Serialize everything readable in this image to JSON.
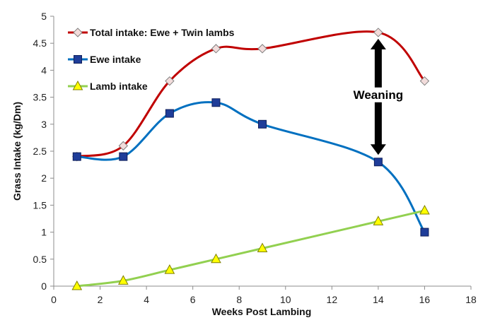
{
  "chart_data": {
    "type": "line",
    "title": "",
    "xlabel": "Weeks Post Lambing",
    "ylabel": "Grass Intake (kg/Dm)",
    "xlim": [
      0,
      18
    ],
    "ylim": [
      0,
      5
    ],
    "xticks": [
      0,
      2,
      4,
      6,
      8,
      10,
      12,
      14,
      16,
      18
    ],
    "yticks": [
      0,
      0.5,
      1,
      1.5,
      2,
      2.5,
      3,
      3.5,
      4,
      4.5,
      5
    ],
    "xtick_labels": [
      "0",
      "2",
      "4",
      "6",
      "8",
      "10",
      "12",
      "14",
      "16",
      "18"
    ],
    "ytick_labels": [
      "0",
      "0.5",
      "1",
      "1.5",
      "2",
      "2.5",
      "3",
      "3.5",
      "4",
      "4.5",
      "5"
    ],
    "grid": false,
    "legend_position": "top-left",
    "series": [
      {
        "name": "Total intake: Ewe + Twin lambs",
        "color": "#c00000",
        "marker": "diamond",
        "marker_fill": "#f2dcdb",
        "marker_stroke": "#7f7f7f",
        "smooth": true,
        "x": [
          1,
          3,
          5,
          7,
          9,
          14,
          16
        ],
        "y": [
          2.4,
          2.6,
          3.8,
          4.4,
          4.4,
          4.7,
          3.8
        ]
      },
      {
        "name": "Ewe intake",
        "color": "#0070c0",
        "marker": "square",
        "marker_fill": "#1f3d99",
        "marker_stroke": "#0f1f5a",
        "smooth": true,
        "x": [
          1,
          3,
          5,
          7,
          9,
          14,
          16
        ],
        "y": [
          2.4,
          2.4,
          3.2,
          3.4,
          3.0,
          2.3,
          1.0
        ]
      },
      {
        "name": "Lamb intake",
        "color": "#92d050",
        "marker": "triangle",
        "marker_fill": "#ffff00",
        "marker_stroke": "#7f7f00",
        "smooth": true,
        "x": [
          1,
          3,
          5,
          7,
          9,
          14,
          16
        ],
        "y": [
          0,
          0.1,
          0.3,
          0.5,
          0.7,
          1.2,
          1.4
        ]
      }
    ],
    "annotations": [
      {
        "text": "Weaning",
        "type": "double-arrow",
        "color": "#000000",
        "arrow_x": 14,
        "arrow_y_from": 2.3,
        "arrow_y_to": 4.7,
        "text_x": 14,
        "text_y": 3.55
      }
    ]
  }
}
